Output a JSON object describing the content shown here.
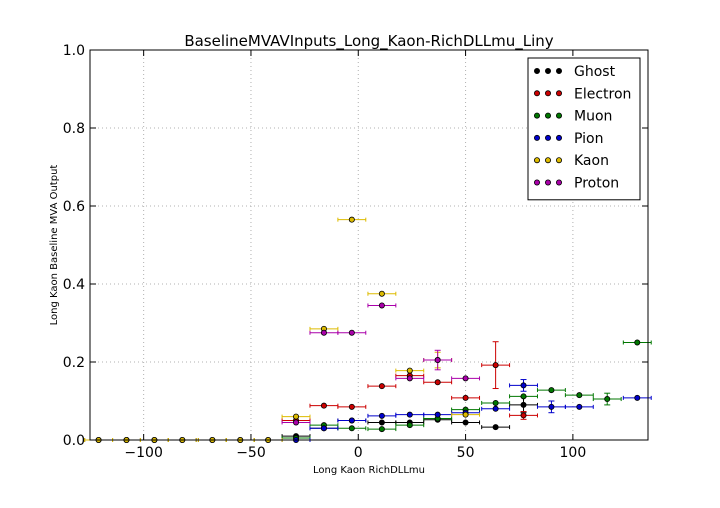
{
  "chart_data": {
    "type": "scatter",
    "title": "BaselineMVAVInputs_Long_Kaon-RichDLLmu_Liny",
    "xlabel": "Long Kaon RichDLLmu",
    "ylabel": "Long Kaon Baseline MVA Output",
    "xlim": [
      -125,
      135
    ],
    "ylim": [
      0.0,
      1.0
    ],
    "x_ticks": [
      -100,
      -50,
      0,
      50,
      100
    ],
    "x_tick_labels": [
      "−100",
      "−50",
      "0",
      "50",
      "100"
    ],
    "y_ticks": [
      0.0,
      0.2,
      0.4,
      0.6,
      0.8,
      1.0
    ],
    "y_tick_labels": [
      "0.0",
      "0.2",
      "0.4",
      "0.6",
      "0.8",
      "1.0"
    ],
    "grid": true,
    "legend_position": "top-right",
    "x_err": 6.5,
    "series": [
      {
        "name": "Ghost",
        "color": "#000000",
        "points": [
          {
            "x": -121,
            "y": 0.0
          },
          {
            "x": -108,
            "y": 0.0
          },
          {
            "x": -95,
            "y": 0.0
          },
          {
            "x": -82,
            "y": 0.0
          },
          {
            "x": -68,
            "y": 0.0
          },
          {
            "x": -55,
            "y": 0.0
          },
          {
            "x": -42,
            "y": 0.0
          },
          {
            "x": -29,
            "y": 0.01
          },
          {
            "x": -16,
            "y": 0.03
          },
          {
            "x": -3,
            "y": 0.05
          },
          {
            "x": 11,
            "y": 0.045
          },
          {
            "x": 24,
            "y": 0.045
          },
          {
            "x": 37,
            "y": 0.052
          },
          {
            "x": 50,
            "y": 0.045
          },
          {
            "x": 64,
            "y": 0.033
          },
          {
            "x": 77,
            "y": 0.09,
            "yerr": 0.02
          }
        ]
      },
      {
        "name": "Electron",
        "color": "#cc0000",
        "points": [
          {
            "x": -29,
            "y": 0.05
          },
          {
            "x": -16,
            "y": 0.088
          },
          {
            "x": -3,
            "y": 0.085
          },
          {
            "x": 11,
            "y": 0.138
          },
          {
            "x": 24,
            "y": 0.165
          },
          {
            "x": 37,
            "y": 0.148
          },
          {
            "x": 50,
            "y": 0.108
          },
          {
            "x": 64,
            "y": 0.192,
            "yerr": 0.06
          },
          {
            "x": 77,
            "y": 0.063,
            "yerr": 0.01
          }
        ]
      },
      {
        "name": "Muon",
        "color": "#007700",
        "points": [
          {
            "x": -29,
            "y": 0.005
          },
          {
            "x": -16,
            "y": 0.038
          },
          {
            "x": -3,
            "y": 0.03
          },
          {
            "x": 11,
            "y": 0.028
          },
          {
            "x": 24,
            "y": 0.038
          },
          {
            "x": 37,
            "y": 0.055
          },
          {
            "x": 50,
            "y": 0.078
          },
          {
            "x": 64,
            "y": 0.095
          },
          {
            "x": 77,
            "y": 0.112
          },
          {
            "x": 90,
            "y": 0.128
          },
          {
            "x": 103,
            "y": 0.115
          },
          {
            "x": 116,
            "y": 0.105,
            "yerr": 0.015
          },
          {
            "x": 130,
            "y": 0.25
          }
        ]
      },
      {
        "name": "Pion",
        "color": "#0000cc",
        "points": [
          {
            "x": -29,
            "y": 0.0
          },
          {
            "x": -16,
            "y": 0.03
          },
          {
            "x": -3,
            "y": 0.05
          },
          {
            "x": 11,
            "y": 0.062
          },
          {
            "x": 24,
            "y": 0.065
          },
          {
            "x": 37,
            "y": 0.065
          },
          {
            "x": 50,
            "y": 0.07
          },
          {
            "x": 64,
            "y": 0.08
          },
          {
            "x": 77,
            "y": 0.14,
            "yerr": 0.015
          },
          {
            "x": 90,
            "y": 0.085,
            "yerr": 0.015
          },
          {
            "x": 103,
            "y": 0.085
          },
          {
            "x": 130,
            "y": 0.108
          }
        ]
      },
      {
        "name": "Kaon",
        "color": "#ddbb00",
        "points": [
          {
            "x": -121,
            "y": 0.0
          },
          {
            "x": -108,
            "y": 0.0
          },
          {
            "x": -95,
            "y": 0.0
          },
          {
            "x": -82,
            "y": 0.0
          },
          {
            "x": -68,
            "y": 0.0
          },
          {
            "x": -55,
            "y": 0.0
          },
          {
            "x": -42,
            "y": 0.0
          },
          {
            "x": -29,
            "y": 0.06
          },
          {
            "x": -16,
            "y": 0.285
          },
          {
            "x": -3,
            "y": 0.565
          },
          {
            "x": 11,
            "y": 0.375
          },
          {
            "x": 24,
            "y": 0.178
          },
          {
            "x": 37,
            "y": 0.205,
            "yerr": 0.02
          },
          {
            "x": 50,
            "y": 0.065
          }
        ]
      },
      {
        "name": "Proton",
        "color": "#aa00aa",
        "points": [
          {
            "x": -29,
            "y": 0.045
          },
          {
            "x": -16,
            "y": 0.275
          },
          {
            "x": -3,
            "y": 0.275
          },
          {
            "x": 11,
            "y": 0.345
          },
          {
            "x": 24,
            "y": 0.158
          },
          {
            "x": 37,
            "y": 0.205,
            "yerr": 0.025
          },
          {
            "x": 50,
            "y": 0.158
          }
        ]
      }
    ]
  }
}
